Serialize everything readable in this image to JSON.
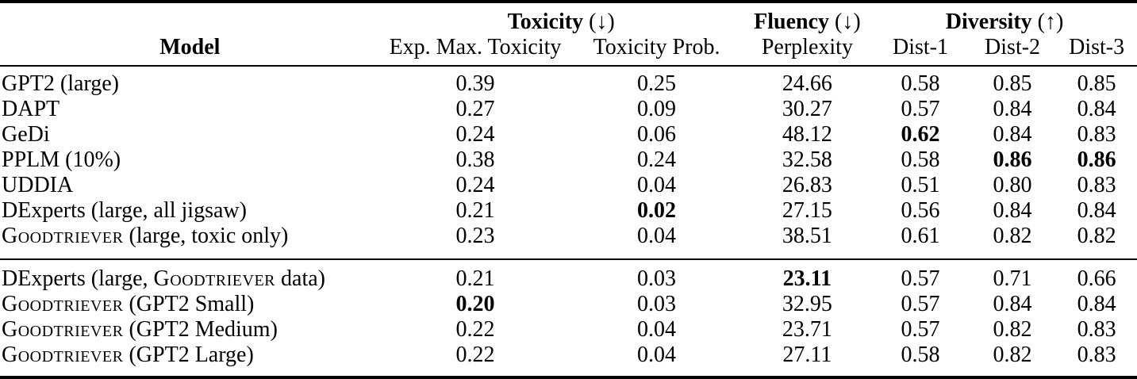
{
  "page": {
    "background_color": "#ffffff",
    "text_color": "#000000"
  },
  "table": {
    "header": {
      "model_label": "Model",
      "groups": [
        {
          "label": "Toxicity",
          "direction": "(↓)",
          "span": 2
        },
        {
          "label": "Fluency",
          "direction": "(↓)",
          "span": 1
        },
        {
          "label": "Diversity",
          "direction": "(↑)",
          "span": 3
        }
      ],
      "columns": [
        "Exp. Max. Toxicity",
        "Toxicity Prob.",
        "Perplexity",
        "Dist-1",
        "Dist-2",
        "Dist-3"
      ]
    },
    "sections": [
      {
        "rows": [
          {
            "model": [
              {
                "t": "GPT2 (large)"
              }
            ],
            "cells": [
              {
                "v": "0.39"
              },
              {
                "v": "0.25"
              },
              {
                "v": "24.66"
              },
              {
                "v": "0.58"
              },
              {
                "v": "0.85"
              },
              {
                "v": "0.85"
              }
            ]
          },
          {
            "model": [
              {
                "t": "DAPT"
              }
            ],
            "cells": [
              {
                "v": "0.27"
              },
              {
                "v": "0.09"
              },
              {
                "v": "30.27"
              },
              {
                "v": "0.57"
              },
              {
                "v": "0.84"
              },
              {
                "v": "0.84"
              }
            ]
          },
          {
            "model": [
              {
                "t": "GeDi"
              }
            ],
            "cells": [
              {
                "v": "0.24"
              },
              {
                "v": "0.06"
              },
              {
                "v": "48.12"
              },
              {
                "v": "0.62",
                "b": true
              },
              {
                "v": "0.84"
              },
              {
                "v": "0.83"
              }
            ]
          },
          {
            "model": [
              {
                "t": "PPLM (10%)"
              }
            ],
            "cells": [
              {
                "v": "0.38"
              },
              {
                "v": "0.24"
              },
              {
                "v": "32.58"
              },
              {
                "v": "0.58"
              },
              {
                "v": "0.86",
                "b": true
              },
              {
                "v": "0.86",
                "b": true
              }
            ]
          },
          {
            "model": [
              {
                "t": "UDDIA"
              }
            ],
            "cells": [
              {
                "v": "0.24"
              },
              {
                "v": "0.04"
              },
              {
                "v": "26.83"
              },
              {
                "v": "0.51"
              },
              {
                "v": "0.80"
              },
              {
                "v": "0.83"
              }
            ]
          },
          {
            "model": [
              {
                "t": "DExperts (large, all jigsaw)"
              }
            ],
            "cells": [
              {
                "v": "0.21"
              },
              {
                "v": "0.02",
                "b": true
              },
              {
                "v": "27.15"
              },
              {
                "v": "0.56"
              },
              {
                "v": "0.84"
              },
              {
                "v": "0.84"
              }
            ]
          },
          {
            "model": [
              {
                "t": "Goodtriever",
                "sc": true
              },
              {
                "t": " (large, toxic only)"
              }
            ],
            "cells": [
              {
                "v": "0.23"
              },
              {
                "v": "0.04"
              },
              {
                "v": "38.51"
              },
              {
                "v": "0.61"
              },
              {
                "v": "0.82"
              },
              {
                "v": "0.82"
              }
            ]
          }
        ]
      },
      {
        "rows": [
          {
            "model": [
              {
                "t": "DExperts (large, "
              },
              {
                "t": "Goodtriever",
                "sc": true
              },
              {
                "t": " data)"
              }
            ],
            "cells": [
              {
                "v": "0.21"
              },
              {
                "v": "0.03"
              },
              {
                "v": "23.11",
                "b": true
              },
              {
                "v": "0.57"
              },
              {
                "v": "0.71"
              },
              {
                "v": "0.66"
              }
            ]
          },
          {
            "model": [
              {
                "t": "Goodtriever",
                "sc": true
              },
              {
                "t": " (GPT2 Small)"
              }
            ],
            "cells": [
              {
                "v": "0.20",
                "b": true
              },
              {
                "v": "0.03"
              },
              {
                "v": "32.95"
              },
              {
                "v": "0.57"
              },
              {
                "v": "0.84"
              },
              {
                "v": "0.84"
              }
            ]
          },
          {
            "model": [
              {
                "t": "Goodtriever",
                "sc": true
              },
              {
                "t": " (GPT2 Medium)"
              }
            ],
            "cells": [
              {
                "v": "0.22"
              },
              {
                "v": "0.04"
              },
              {
                "v": "23.71"
              },
              {
                "v": "0.57"
              },
              {
                "v": "0.82"
              },
              {
                "v": "0.83"
              }
            ]
          },
          {
            "model": [
              {
                "t": "Goodtriever",
                "sc": true
              },
              {
                "t": " (GPT2 Large)"
              }
            ],
            "cells": [
              {
                "v": "0.22"
              },
              {
                "v": "0.04"
              },
              {
                "v": "27.11"
              },
              {
                "v": "0.58"
              },
              {
                "v": "0.82"
              },
              {
                "v": "0.83"
              }
            ]
          }
        ]
      }
    ]
  }
}
